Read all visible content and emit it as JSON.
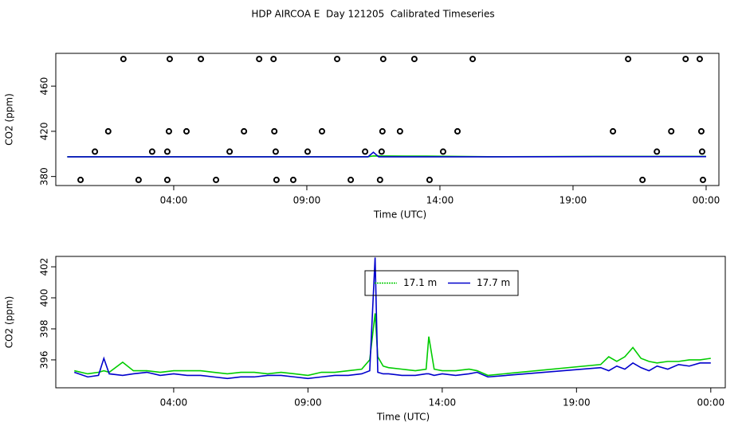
{
  "chart_data": [
    {
      "type": "scatter",
      "title": "HDP AIRCOA E  Day 121205  Calibrated Timeseries",
      "x_label": "Time (UTC)",
      "y_label": "CO2 (ppm)",
      "xlim": [
        -0.43,
        24.48
      ],
      "ylim": [
        372,
        489
      ],
      "xticks": [
        {
          "value": 4,
          "label": "04:00"
        },
        {
          "value": 9,
          "label": "09:00"
        },
        {
          "value": 14,
          "label": "14:00"
        },
        {
          "value": 19,
          "label": "19:00"
        },
        {
          "value": 24,
          "label": "00:00"
        }
      ],
      "yticks": [
        380,
        420,
        460
      ],
      "series": [
        {
          "type": "scatter",
          "color": "#000000",
          "x": [
            2.11,
            3.85,
            5.02,
            7.21,
            7.75,
            10.14,
            11.87,
            13.04,
            15.23,
            21.07,
            23.23,
            23.76,
            1.54,
            3.82,
            4.48,
            6.64,
            7.78,
            9.57,
            11.84,
            12.5,
            14.66,
            20.5,
            22.69,
            23.82,
            1.04,
            3.19,
            3.76,
            6.1,
            7.83,
            9.03,
            11.19,
            11.81,
            14.12,
            22.15,
            23.85,
            0.5,
            2.68,
            3.76,
            5.59,
            7.86,
            8.49,
            10.65,
            11.75,
            13.61,
            21.61,
            23.88
          ],
          "values": [
            484,
            484,
            484,
            484,
            484,
            484,
            484,
            484,
            484,
            484,
            484,
            484,
            420,
            420,
            420,
            420,
            420,
            420,
            420,
            420,
            420,
            420,
            420,
            420,
            402,
            402,
            402,
            402,
            402,
            402,
            402,
            402,
            402,
            402,
            402,
            377,
            377,
            377,
            377,
            377,
            377,
            377,
            377,
            377,
            377,
            377
          ]
        },
        {
          "type": "line",
          "color": "#00cc00",
          "x": [
            0,
            11.3,
            11.5,
            13.5,
            15.8,
            19.9,
            24
          ],
          "values": [
            397.5,
            397.5,
            398.2,
            398.0,
            397.5,
            397.8,
            397.8
          ]
        },
        {
          "type": "line",
          "color": "#0000cc",
          "x": [
            0,
            11.3,
            11.5,
            11.7,
            15.8,
            19.9,
            24
          ],
          "values": [
            397.4,
            397.4,
            401.5,
            397.4,
            397.4,
            397.6,
            397.6
          ]
        }
      ]
    },
    {
      "type": "line",
      "x_label": "Time (UTC)",
      "y_label": "CO2 (ppm)",
      "xlim": [
        -0.39,
        24.54
      ],
      "ylim": [
        394.2,
        402.67
      ],
      "xticks": [
        {
          "value": 4,
          "label": "04:00"
        },
        {
          "value": 9,
          "label": "09:00"
        },
        {
          "value": 14,
          "label": "14:00"
        },
        {
          "value": 19,
          "label": "19:00"
        },
        {
          "value": 24,
          "label": "00:00"
        }
      ],
      "yticks": [
        396,
        398,
        400,
        402
      ],
      "legend": "top",
      "x": [
        0.3,
        0.8,
        1.2,
        1.4,
        1.6,
        2.1,
        2.5,
        3,
        3.5,
        4,
        4.5,
        5,
        5.5,
        6,
        6.5,
        7,
        7.5,
        8,
        8.5,
        9,
        9.5,
        10,
        10.5,
        11,
        11.3,
        11.5,
        11.6,
        11.8,
        12,
        12.5,
        13,
        13.4,
        13.5,
        13.7,
        14,
        14.5,
        15,
        15.3,
        15.7,
        19.9,
        20.2,
        20.5,
        20.8,
        21.1,
        21.4,
        21.7,
        22,
        22.4,
        22.8,
        23.2,
        23.6,
        24
      ],
      "series": [
        {
          "name": "17.1 m",
          "color": "#00cc00",
          "values": [
            395.3,
            395.1,
            395.2,
            395.3,
            395.2,
            395.85,
            395.3,
            395.3,
            395.2,
            395.3,
            395.3,
            395.3,
            395.2,
            395.1,
            395.2,
            395.2,
            395.1,
            395.2,
            395.1,
            395.0,
            395.2,
            395.2,
            395.3,
            395.4,
            396.0,
            399.0,
            396.2,
            395.6,
            395.5,
            395.4,
            395.3,
            395.4,
            397.5,
            395.4,
            395.3,
            395.3,
            395.4,
            395.3,
            395.0,
            395.7,
            396.2,
            395.9,
            396.2,
            396.8,
            396.1,
            395.9,
            395.8,
            395.9,
            395.9,
            396.0,
            396.0,
            396.1
          ]
        },
        {
          "name": "17.7 m",
          "color": "#0000cc",
          "values": [
            395.2,
            394.9,
            395.0,
            396.1,
            395.1,
            395.0,
            395.1,
            395.2,
            395.0,
            395.1,
            395.0,
            395.0,
            394.9,
            394.8,
            394.9,
            394.9,
            395.0,
            395.0,
            394.9,
            394.8,
            394.9,
            395.0,
            395.0,
            395.1,
            395.3,
            402.6,
            395.2,
            395.1,
            395.1,
            395.0,
            395.0,
            395.1,
            395.1,
            395.0,
            395.1,
            395.0,
            395.1,
            395.2,
            394.9,
            395.5,
            395.3,
            395.6,
            395.4,
            395.8,
            395.5,
            395.3,
            395.6,
            395.4,
            395.7,
            395.6,
            395.8,
            395.8
          ]
        }
      ]
    }
  ]
}
